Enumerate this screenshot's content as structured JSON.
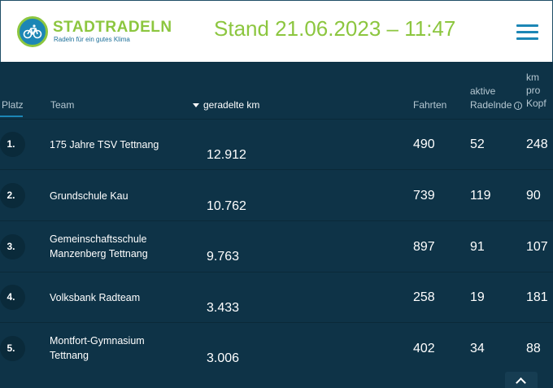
{
  "header": {
    "logo_title": "STADTRADELN",
    "logo_subtitle": "Radeln für ein gutes Klima",
    "stand": "Stand 21.06.2023 – 11:47"
  },
  "table": {
    "headers": {
      "platz": "Platz",
      "team": "Team",
      "km": "geradelte km",
      "fahrten": "Fahrten",
      "radelnde_1": "aktive",
      "radelnde_2": "Radelnde",
      "kopf_1": "km",
      "kopf_2": "pro",
      "kopf_3": "Kopf"
    },
    "rows": [
      {
        "rank": "1.",
        "team_1": "175 Jahre TSV Tettnang",
        "team_2": "",
        "km": "12.912",
        "fahrten": "490",
        "radelnde": "52",
        "kopf": "248"
      },
      {
        "rank": "2.",
        "team_1": "Grundschule Kau",
        "team_2": "",
        "km": "10.762",
        "fahrten": "739",
        "radelnde": "119",
        "kopf": "90"
      },
      {
        "rank": "3.",
        "team_1": "Gemeinschaftsschule",
        "team_2": "Manzenberg Tettnang",
        "km": "9.763",
        "fahrten": "897",
        "radelnde": "91",
        "kopf": "107"
      },
      {
        "rank": "4.",
        "team_1": "Volksbank Radteam",
        "team_2": "",
        "km": "3.433",
        "fahrten": "258",
        "radelnde": "19",
        "kopf": "181"
      },
      {
        "rank": "5.",
        "team_1": "Montfort-Gymnasium",
        "team_2": "Tettnang",
        "km": "3.006",
        "fahrten": "402",
        "radelnde": "34",
        "kopf": "88"
      }
    ]
  },
  "icons": {
    "logo": "bicycle-icon",
    "menu": "hamburger-menu-icon",
    "sort": "sort-desc-icon",
    "info": "info-icon",
    "scroll": "chevron-up-icon"
  },
  "colors": {
    "background": "#0e3347",
    "accent_green": "#8cc63f",
    "accent_blue": "#1c86b5"
  }
}
